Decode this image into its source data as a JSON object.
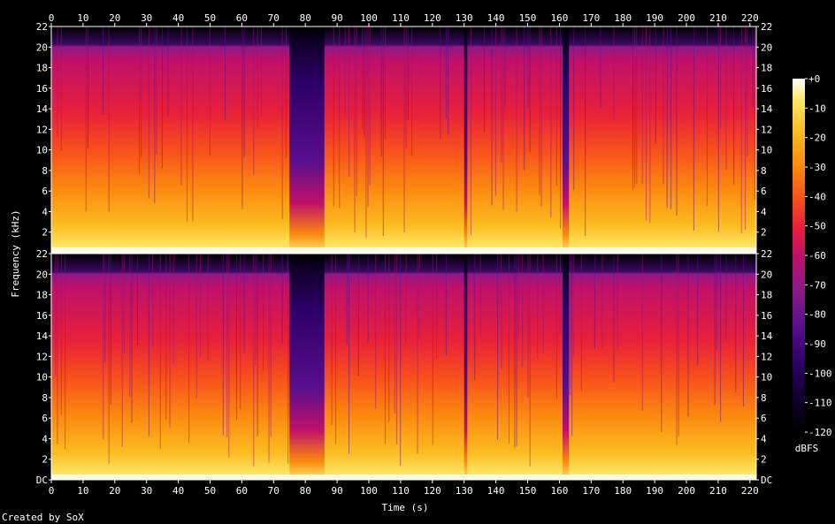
{
  "chart_data": {
    "type": "heatmap",
    "subtype": "spectrogram",
    "xlabel": "Time (s)",
    "ylabel": "Frequency (kHz)",
    "xlim": [
      0,
      222
    ],
    "ylim": [
      0,
      22
    ],
    "x_ticks": [
      "0",
      "10",
      "20",
      "30",
      "40",
      "50",
      "60",
      "70",
      "80",
      "90",
      "100",
      "110",
      "120",
      "130",
      "140",
      "150",
      "160",
      "170",
      "180",
      "190",
      "200",
      "210",
      "220"
    ],
    "y_ticks_top": [
      "22",
      "20",
      "18",
      "16",
      "14",
      "12",
      "10",
      "8",
      "6",
      "4",
      "2"
    ],
    "y_ticks_bottom": [
      "22",
      "20",
      "18",
      "16",
      "14",
      "12",
      "10",
      "8",
      "6",
      "4",
      "2",
      "DC"
    ],
    "channels": 2,
    "grid": false,
    "colorbar": {
      "label": "dBFS",
      "range": [
        -120,
        0
      ],
      "ticks": [
        "+0",
        "-10",
        "-20",
        "-30",
        "-40",
        "-50",
        "-60",
        "-70",
        "-80",
        "-90",
        "-100",
        "-110",
        "-120"
      ],
      "colormap": [
        "#000000",
        "#12002e",
        "#2e0068",
        "#5a0f8c",
        "#8a1a88",
        "#c0106a",
        "#e8203a",
        "#f8501c",
        "#fc8a10",
        "#fcbc20",
        "#fde86a",
        "#ffffff"
      ]
    },
    "spectrum": {
      "cutoff_khz": 20,
      "quiet_sections_s": [
        [
          75,
          86
        ],
        [
          130,
          131
        ],
        [
          161,
          163
        ]
      ],
      "loud_sections_s": [
        [
          0,
          74
        ],
        [
          87,
          129
        ],
        [
          132,
          222
        ]
      ]
    },
    "footer": "Created by SoX"
  }
}
